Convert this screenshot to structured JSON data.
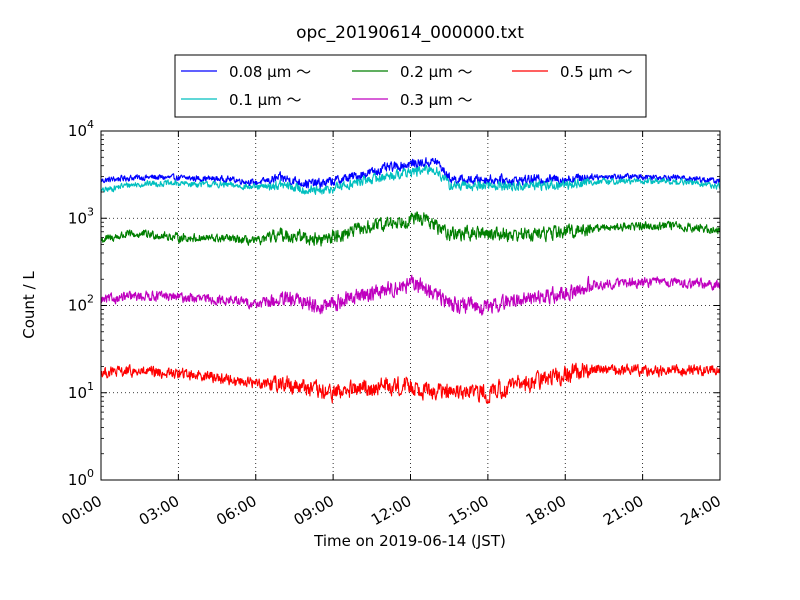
{
  "chart_data": {
    "type": "line",
    "title": "opc_20190614_000000.txt",
    "xlabel": "Time on 2019-06-14 (JST)",
    "ylabel": "Count / L",
    "y_scale": "log",
    "ylim": [
      1,
      10000
    ],
    "xlim": [
      "00:00",
      "24:00"
    ],
    "x_ticks": [
      "00:00",
      "03:00",
      "06:00",
      "09:00",
      "12:00",
      "15:00",
      "18:00",
      "21:00",
      "24:00"
    ],
    "y_ticks": [
      {
        "base": "10",
        "exp": "0",
        "value": 1
      },
      {
        "base": "10",
        "exp": "1",
        "value": 10
      },
      {
        "base": "10",
        "exp": "2",
        "value": 100
      },
      {
        "base": "10",
        "exp": "3",
        "value": 1000
      },
      {
        "base": "10",
        "exp": "4",
        "value": 10000
      }
    ],
    "grid": true,
    "legend_position": "top",
    "x_hours": [
      0,
      1,
      2,
      3,
      4,
      5,
      6,
      7,
      8,
      8.5,
      9,
      10,
      11,
      12,
      12.5,
      13,
      13.5,
      14,
      15,
      16,
      17,
      18,
      19,
      20,
      21,
      22,
      23,
      24
    ],
    "series": [
      {
        "name": "0.08 μm ～",
        "color": "#0000ff",
        "noise": 0.05,
        "values": [
          2700,
          2900,
          2950,
          2900,
          2850,
          2800,
          2550,
          2900,
          2500,
          2500,
          2650,
          3100,
          3700,
          4200,
          4300,
          4500,
          2900,
          2700,
          2800,
          2700,
          2800,
          2800,
          3000,
          3000,
          3000,
          2950,
          2850,
          2650
        ]
      },
      {
        "name": "0.1 μm ～",
        "color": "#00bfbf",
        "noise": 0.05,
        "values": [
          2050,
          2400,
          2500,
          2500,
          2450,
          2400,
          2250,
          2400,
          2100,
          2000,
          2200,
          2600,
          3000,
          3400,
          3500,
          3600,
          2400,
          2300,
          2400,
          2300,
          2400,
          2400,
          2600,
          2650,
          2650,
          2650,
          2550,
          2300
        ]
      },
      {
        "name": "0.2 μm ～",
        "color": "#007f00",
        "noise": 0.07,
        "values": [
          560,
          650,
          650,
          600,
          590,
          580,
          540,
          650,
          600,
          560,
          620,
          740,
          850,
          980,
          1000,
          800,
          680,
          660,
          680,
          650,
          660,
          700,
          760,
          800,
          820,
          820,
          780,
          720
        ]
      },
      {
        "name": "0.3 μm ～",
        "color": "#bf00bf",
        "noise": 0.08,
        "values": [
          115,
          125,
          130,
          125,
          118,
          115,
          105,
          115,
          112,
          95,
          105,
          130,
          150,
          175,
          165,
          130,
          110,
          100,
          95,
          115,
          125,
          135,
          170,
          180,
          185,
          185,
          178,
          172
        ]
      },
      {
        "name": "0.5 μm ～",
        "color": "#ff0000",
        "noise": 0.09,
        "values": [
          17,
          17.5,
          17,
          16.5,
          16,
          14,
          13,
          13,
          11.5,
          10,
          10,
          11,
          12,
          12,
          11,
          10.5,
          10,
          10,
          10,
          12,
          14,
          16,
          18.5,
          18.5,
          18,
          18,
          18,
          18
        ]
      }
    ]
  }
}
